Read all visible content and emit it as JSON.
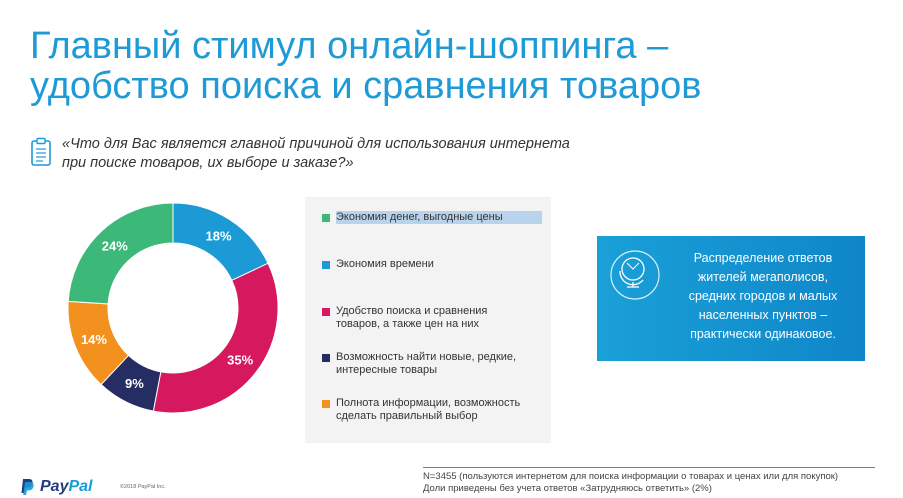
{
  "title": {
    "line1": "Главный стимул онлайн-шоппинга –",
    "line2": "удобство поиска и сравнения товаров"
  },
  "question": {
    "icon": "clipboard-icon",
    "line1": "«Что для Вас является главной причиной для использования интернета",
    "line2": "при поиске товаров, их выборе и заказе?»"
  },
  "chart_data": {
    "type": "pie",
    "categories": [
      "Экономия денег, выгодные цены",
      "Экономия времени",
      "Удобство поиска и сравнения товаров, а также цен на них",
      "Возможность найти новые, редкие, интересные товары",
      "Полнота информации, возможность сделать правильный выбор"
    ],
    "values": [
      24,
      18,
      35,
      9,
      14
    ],
    "value_labels": [
      "24%",
      "18%",
      "35%",
      "9%",
      "14%"
    ],
    "colors": [
      "#3cb878",
      "#1b9ad6",
      "#d6185f",
      "#262d63",
      "#f3911e"
    ],
    "donut": true,
    "legend_placement": "right"
  },
  "legend": {
    "items": [
      {
        "lines": [
          "Экономия денег, выгодные цены"
        ],
        "color": "#3cb878"
      },
      {
        "lines": [
          "Экономия времени"
        ],
        "color": "#1b9ad6"
      },
      {
        "lines": [
          "Удобство поиска и сравнения",
          "товаров, а также цен на них"
        ],
        "color": "#d6185f"
      },
      {
        "lines": [
          "Возможность найти новые, редкие,",
          "интересные товары"
        ],
        "color": "#262d63"
      },
      {
        "lines": [
          "Полнота информации, возможность",
          "сделать правильный выбор"
        ],
        "color": "#f3911e"
      }
    ]
  },
  "callout": {
    "icon": "globe-icon",
    "lines": [
      "Распределение ответов",
      "жителей мегаполисов,",
      "средних городов и малых",
      "населенных пунктов –",
      "практически одинаковое."
    ]
  },
  "footnote": {
    "line1": "N=3455 (пользуются интернетом для поиска информации о товарах и ценах или для покупок)",
    "line2": "Доли приведены без учета ответов «Затрудняюсь ответить» (2%)"
  },
  "logo": {
    "pay": "Pay",
    "pal": "Pal"
  },
  "copyright": "©2018 PayPal Inc."
}
